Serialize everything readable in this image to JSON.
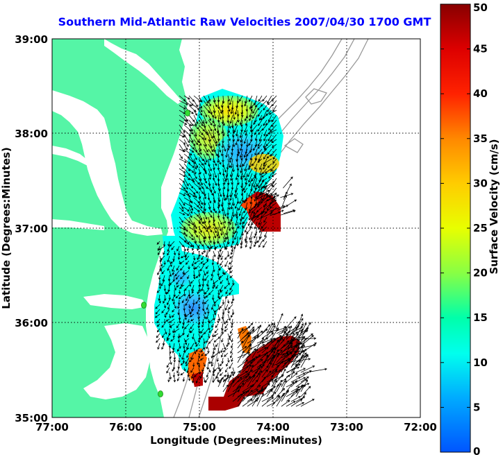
{
  "title": "Southern Mid-Atlantic Raw Velocities 2007/04/30 1700 GMT",
  "xlabel": "Longitude (Degrees:Minutes)",
  "ylabel": "Latitude (Degrees:Minutes)",
  "x_ticks": [
    "77:00",
    "76:00",
    "75:00",
    "74:00",
    "73:00",
    "72:00"
  ],
  "y_ticks": [
    "39:00",
    "38:00",
    "37:00",
    "36:00",
    "35:00"
  ],
  "colorbar": {
    "label": "Surface Velocity (cm/s)",
    "ticks": [
      "0",
      "5",
      "10",
      "15",
      "20",
      "25",
      "30",
      "35",
      "40",
      "45",
      "50"
    ],
    "range": [
      0,
      50
    ]
  },
  "colors": {
    "land": "#55f5a6",
    "title": "#0000ff",
    "station": "#33dd33"
  },
  "chart_data": {
    "type": "heatmap",
    "title": "Southern Mid-Atlantic Raw Velocities 2007/04/30 1700 GMT",
    "xlabel": "Longitude (Degrees:Minutes)",
    "ylabel": "Latitude (Degrees:Minutes)",
    "xlim": [
      -77,
      -72
    ],
    "ylim": [
      35,
      39
    ],
    "grid": true,
    "colorbar_label": "Surface Velocity (cm/s)",
    "colorbar_range": [
      0,
      50
    ]
  }
}
